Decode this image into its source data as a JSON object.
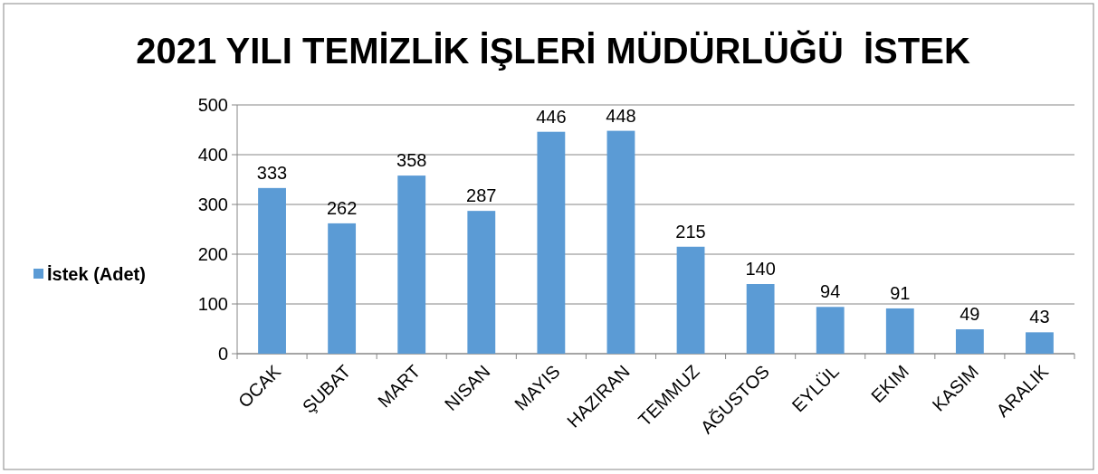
{
  "chart_data": {
    "type": "bar",
    "title": "2021 YILI TEMİZLİK İŞLERİ MÜDÜRLÜĞÜ  İSTEK",
    "categories": [
      "OCAK",
      "ŞUBAT",
      "MART",
      "NISAN",
      "MAYIS",
      "HAZIRAN",
      "TEMMUZ",
      "AĞUSTOS",
      "EYLÜL",
      "EKIM",
      "KASIM",
      "ARALIK"
    ],
    "series": [
      {
        "name": "İstek (Adet)",
        "color": "#5b9bd5",
        "values": [
          333,
          262,
          358,
          287,
          446,
          448,
          215,
          140,
          94,
          91,
          49,
          43
        ]
      }
    ],
    "ylim": [
      0,
      500
    ],
    "yticks": [
      0,
      100,
      200,
      300,
      400,
      500
    ],
    "grid": "y",
    "legend": "left",
    "data_labels": true
  }
}
